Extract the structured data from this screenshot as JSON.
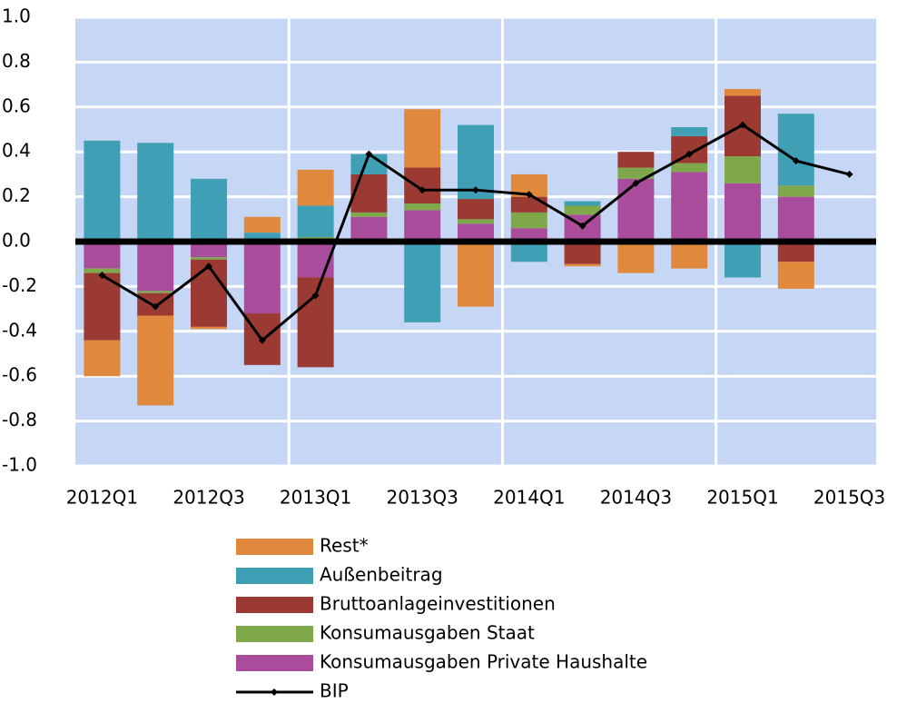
{
  "chart_data": {
    "type": "bar",
    "categories": [
      "2012Q1",
      null,
      "2012Q3",
      null,
      "2013Q1",
      null,
      "2013Q3",
      null,
      "2014Q1",
      null,
      "2014Q3",
      null,
      "2015Q1",
      null,
      "2015Q3"
    ],
    "series": [
      {
        "name": "Rest*",
        "color": "#e0883c",
        "values": [
          -0.16,
          -0.4,
          -0.01,
          0.07,
          0.16,
          null,
          0.26,
          -0.29,
          0.1,
          -0.01,
          -0.14,
          -0.12,
          0.03,
          -0.12,
          null
        ]
      },
      {
        "name": "Außenbeitrag",
        "color": "#3f9fb5",
        "values": [
          0.45,
          0.44,
          0.28,
          0.04,
          0.14,
          0.09,
          -0.36,
          0.33,
          -0.09,
          0.02,
          null,
          0.04,
          -0.16,
          0.32,
          null
        ]
      },
      {
        "name": "Bruttoanlageinvestitionen",
        "color": "#9b3a33",
        "values": [
          -0.3,
          -0.1,
          -0.3,
          -0.23,
          -0.4,
          0.17,
          0.16,
          0.09,
          0.07,
          -0.1,
          0.07,
          0.12,
          0.27,
          -0.09,
          null
        ]
      },
      {
        "name": "Konsumausgaben Staat",
        "color": "#7fa84a",
        "values": [
          -0.02,
          -0.01,
          -0.01,
          null,
          0.02,
          0.02,
          0.03,
          0.02,
          0.07,
          0.04,
          0.05,
          0.04,
          0.12,
          0.05,
          null
        ]
      },
      {
        "name": "Konsumausgaben Private Haushalte",
        "color": "#a84c9b",
        "values": [
          -0.12,
          -0.22,
          -0.07,
          -0.32,
          -0.16,
          0.11,
          0.14,
          0.08,
          0.06,
          0.12,
          0.28,
          0.31,
          0.26,
          0.2,
          null
        ]
      },
      {
        "name": "BIP",
        "color": "#000000",
        "type": "line",
        "values": [
          -0.15,
          -0.29,
          -0.11,
          -0.44,
          -0.24,
          0.39,
          0.23,
          0.23,
          0.21,
          0.07,
          0.26,
          0.39,
          0.52,
          0.36,
          0.3
        ]
      }
    ],
    "ylim": [
      -1,
      1
    ],
    "yticks": [
      {
        "value": -1,
        "label": "-1.0"
      },
      -0.8,
      -0.6,
      -0.4,
      -0.2,
      {
        "value": 0,
        "label": "0.0"
      },
      0.2,
      0.4,
      0.6,
      0.8,
      {
        "value": 1,
        "label": "1.0"
      }
    ],
    "grid": true,
    "background": "#c6d7f6"
  }
}
